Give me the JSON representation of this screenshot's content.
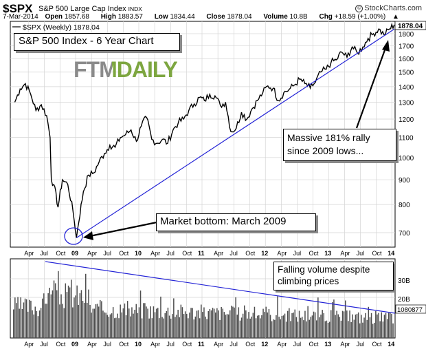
{
  "header": {
    "symbol": "$SPX",
    "description": "S&P 500 Large Cap Index",
    "exchange": "INDX",
    "watermark": "StockCharts.com",
    "date": "7-Mar-2014",
    "open_label": "Open",
    "open": "1857.68",
    "high_label": "High",
    "high": "1883.57",
    "low_label": "Low",
    "low": "1834.44",
    "close_label": "Close",
    "close": "1878.04",
    "volume_label": "Volume",
    "volume": "10.8B",
    "chg_label": "Chg",
    "chg": "+18.59 (+1.00%)"
  },
  "legend": {
    "series": "$SPX (Weekly) 1878.04"
  },
  "annotations": {
    "title": "S&P 500 Index - 6 Year Chart",
    "logo": "FTMDAILY",
    "bottom": "Market bottom: March 2009",
    "rally_line1": "Massive 181% rally",
    "rally_line2": "since 2009 lows...",
    "volume_line1": "Falling volume despite",
    "volume_line2": "climbing prices"
  },
  "colors": {
    "price": "#000000",
    "trendline": "#2323d6",
    "volume": "#505050",
    "logo_green": "#7da640",
    "logo_gray": "#8a8a8a"
  },
  "chart_data": [
    {
      "type": "line",
      "series_name": "$SPX (Weekly)",
      "last_value": "1878.04",
      "y_scale": "log",
      "ylim": [
        660,
        1890
      ],
      "y_ticks": [
        700,
        800,
        900,
        1000,
        1100,
        1200,
        1300,
        1400,
        1500,
        1600,
        1700,
        1800
      ],
      "x_labels": [
        "Apr",
        "Jul",
        "Oct",
        "09",
        "Apr",
        "Jul",
        "Oct",
        "10",
        "Apr",
        "Jul",
        "Oct",
        "11",
        "Apr",
        "Jul",
        "Oct",
        "12",
        "Apr",
        "Jul",
        "Oct",
        "13",
        "Apr",
        "Jul",
        "Oct",
        "14"
      ],
      "x_range": [
        "2008-03",
        "2014-03"
      ],
      "points": [
        [
          "2008-03",
          1300
        ],
        [
          "2008-04",
          1385
        ],
        [
          "2008-05",
          1420
        ],
        [
          "2008-06",
          1350
        ],
        [
          "2008-07",
          1250
        ],
        [
          "2008-08",
          1285
        ],
        [
          "2008-09",
          1220
        ],
        [
          "2008-10-05",
          1100
        ],
        [
          "2008-10-12",
          900
        ],
        [
          "2008-10-26",
          880
        ],
        [
          "2008-11-20",
          790
        ],
        [
          "2008-12",
          900
        ],
        [
          "2009-01",
          880
        ],
        [
          "2009-02",
          770
        ],
        [
          "2009-03-06",
          683
        ],
        [
          "2009-04",
          850
        ],
        [
          "2009-05",
          920
        ],
        [
          "2009-06",
          930
        ],
        [
          "2009-07",
          980
        ],
        [
          "2009-08",
          1020
        ],
        [
          "2009-09",
          1060
        ],
        [
          "2009-10",
          1050
        ],
        [
          "2009-11",
          1100
        ],
        [
          "2009-12",
          1115
        ],
        [
          "2010-01",
          1140
        ],
        [
          "2010-02",
          1080
        ],
        [
          "2010-03",
          1160
        ],
        [
          "2010-04",
          1210
        ],
        [
          "2010-05",
          1090
        ],
        [
          "2010-06",
          1070
        ],
        [
          "2010-07",
          1090
        ],
        [
          "2010-08",
          1070
        ],
        [
          "2010-09",
          1140
        ],
        [
          "2010-10",
          1180
        ],
        [
          "2010-11",
          1200
        ],
        [
          "2010-12",
          1250
        ],
        [
          "2011-01",
          1290
        ],
        [
          "2011-02",
          1330
        ],
        [
          "2011-03",
          1310
        ],
        [
          "2011-04",
          1350
        ],
        [
          "2011-05",
          1340
        ],
        [
          "2011-06",
          1280
        ],
        [
          "2011-07",
          1300
        ],
        [
          "2011-08",
          1130
        ],
        [
          "2011-09",
          1150
        ],
        [
          "2011-10",
          1240
        ],
        [
          "2011-11",
          1200
        ],
        [
          "2011-12",
          1260
        ],
        [
          "2012-01",
          1310
        ],
        [
          "2012-02",
          1360
        ],
        [
          "2012-03",
          1405
        ],
        [
          "2012-04",
          1390
        ],
        [
          "2012-05",
          1310
        ],
        [
          "2012-06",
          1360
        ],
        [
          "2012-07",
          1380
        ],
        [
          "2012-08",
          1410
        ],
        [
          "2012-09",
          1450
        ],
        [
          "2012-10",
          1420
        ],
        [
          "2012-11",
          1390
        ],
        [
          "2012-12",
          1430
        ],
        [
          "2013-01",
          1500
        ],
        [
          "2013-02",
          1520
        ],
        [
          "2013-03",
          1570
        ],
        [
          "2013-04",
          1590
        ],
        [
          "2013-05",
          1650
        ],
        [
          "2013-06",
          1610
        ],
        [
          "2013-07",
          1690
        ],
        [
          "2013-08",
          1640
        ],
        [
          "2013-09",
          1690
        ],
        [
          "2013-10",
          1760
        ],
        [
          "2013-11",
          1800
        ],
        [
          "2013-12",
          1840
        ],
        [
          "2014-01",
          1790
        ],
        [
          "2014-02",
          1840
        ],
        [
          "2014-03",
          1878
        ]
      ],
      "trendline": [
        [
          "2009-03-06",
          683
        ],
        [
          "2014-03",
          1840
        ]
      ]
    },
    {
      "type": "bar",
      "series_name": "Volume",
      "last_value": "1080877",
      "y_ticks": [
        "20B",
        "30B"
      ],
      "trendline_note": "declining",
      "bars_pattern": "weekly volume bars, highest in late 2008, generally declining toward 2014"
    }
  ]
}
